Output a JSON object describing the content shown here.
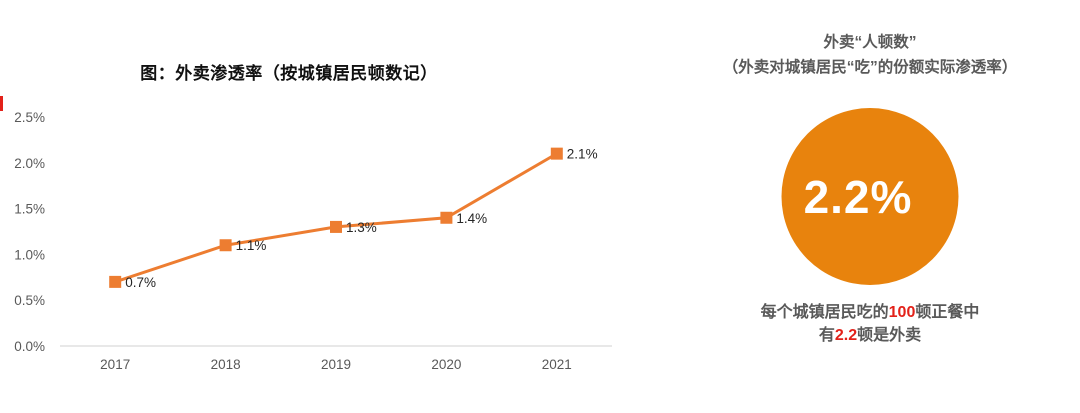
{
  "chart_data": {
    "type": "line",
    "title": "图：外卖渗透率（按城镇居民顿数记）",
    "categories": [
      "2017",
      "2018",
      "2019",
      "2020",
      "2021"
    ],
    "values": [
      0.7,
      1.1,
      1.3,
      1.4,
      2.1
    ],
    "point_labels": [
      "0.7%",
      "1.1%",
      "1.3%",
      "1.4%",
      "2.1%"
    ],
    "y_tick_labels": [
      "0.0%",
      "0.5%",
      "1.0%",
      "1.5%",
      "2.0%",
      "2.5%"
    ],
    "ylim": [
      0,
      2.5
    ],
    "xlabel": "",
    "ylabel": "",
    "grid": false,
    "legend": false,
    "marker": "square",
    "line_color": "#ED7D31",
    "marker_color": "#ED7D31",
    "axis_line_color": "#D9D9D9",
    "axis_label_color": "#595959",
    "point_label_color": "#262626"
  },
  "right_panel": {
    "title_line1": "外卖“人顿数”",
    "title_line2": "（外卖对城镇居民“吃”的份额实际渗透率）",
    "title_color": "#595959",
    "circle": {
      "value": "2.2%",
      "color": "#E8830D",
      "text_color": "#FFFFFF"
    },
    "caption": {
      "line1_pre": "每个城镇居民吃的",
      "line1_num": "100",
      "line1_post": "顿正餐中",
      "line2_pre": "有",
      "line2_num": "2.2",
      "line2_post": "顿是外卖",
      "text_color": "#595959",
      "highlight_color": "#E32119"
    }
  },
  "decor": {
    "red_corner_mark_color": "#E32119"
  }
}
